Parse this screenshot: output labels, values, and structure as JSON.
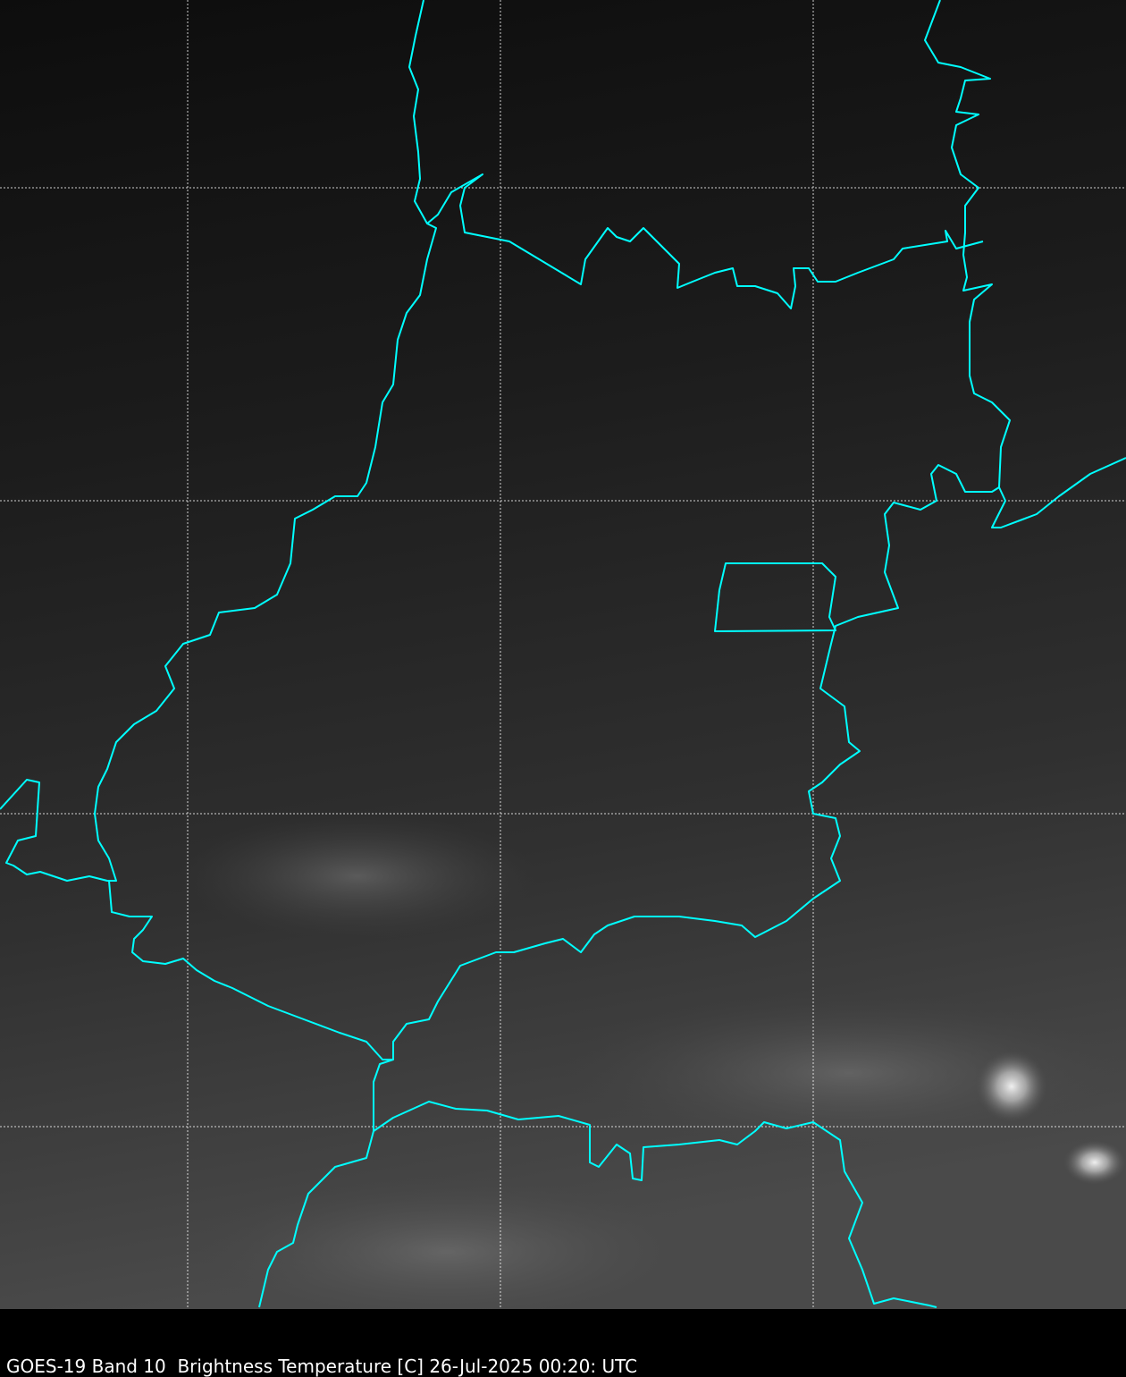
{
  "caption": "GOES-19 Band 10  Brightness Temperature [C] 26-Jul-2025 00:20: UTC",
  "map": {
    "satellite": "GOES-19",
    "band": "Band 10",
    "variable": "Brightness Temperature [C]",
    "date": "26-Jul-2025",
    "time": "00:20 UTC",
    "colormap": "grayscale",
    "border_color": "#00ffff",
    "grid_color": "#ffffff",
    "grid_style": "dotted"
  }
}
